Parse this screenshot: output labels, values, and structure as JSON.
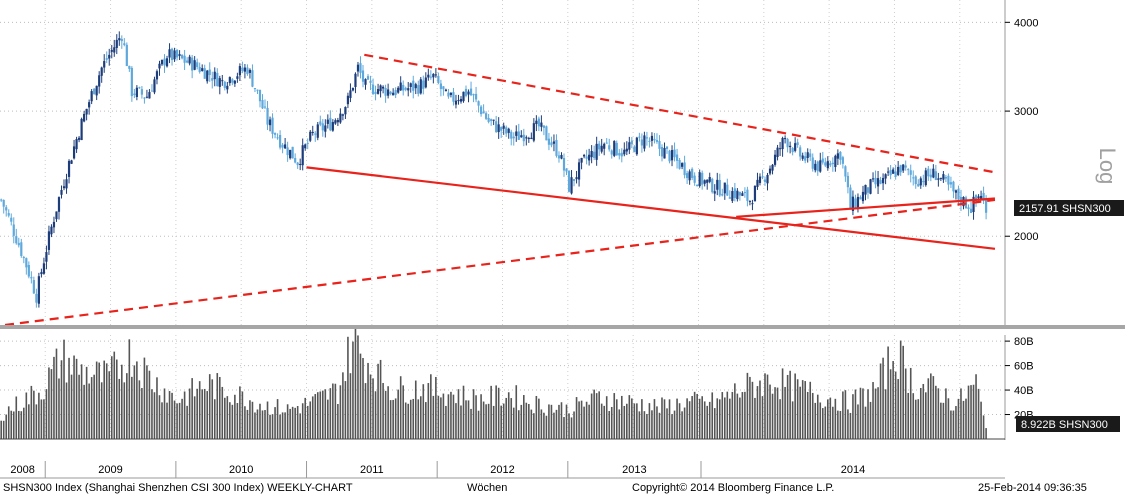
{
  "chart_data": [
    {
      "type": "candlestick",
      "title": "",
      "yscale": "log",
      "ylabel": "Log",
      "ylim": [
        1500,
        4300
      ],
      "yticks": [
        2000,
        3000,
        4000
      ],
      "ytick_labels": [
        "2000",
        "3000",
        "4000"
      ],
      "last_value_label": "2157.91 SHSN300",
      "last_value": 2157.91,
      "bull_color": "#1c3c7a",
      "bear_color": "#5ea8dc",
      "trend_color": "#e8231b",
      "series": [
        {
          "week": 0,
          "close": 2250
        },
        {
          "week": 14,
          "close": 1650
        },
        {
          "week": 28,
          "close": 2600
        },
        {
          "week": 40,
          "close": 3450
        },
        {
          "week": 48,
          "close": 3850
        },
        {
          "week": 52,
          "close": 3200
        },
        {
          "week": 58,
          "close": 3150
        },
        {
          "week": 66,
          "close": 3600
        },
        {
          "week": 76,
          "close": 3500
        },
        {
          "week": 88,
          "close": 3300
        },
        {
          "week": 98,
          "close": 3450
        },
        {
          "week": 106,
          "close": 2900
        },
        {
          "week": 112,
          "close": 2700
        },
        {
          "week": 118,
          "close": 2550
        },
        {
          "week": 124,
          "close": 2780
        },
        {
          "week": 132,
          "close": 2900
        },
        {
          "week": 138,
          "close": 3100
        },
        {
          "week": 142,
          "close": 3450
        },
        {
          "week": 145,
          "close": 3250
        },
        {
          "week": 156,
          "close": 3200
        },
        {
          "week": 166,
          "close": 3250
        },
        {
          "week": 172,
          "close": 3350
        },
        {
          "week": 178,
          "close": 3100
        },
        {
          "week": 186,
          "close": 3200
        },
        {
          "week": 194,
          "close": 2900
        },
        {
          "week": 204,
          "close": 2750
        },
        {
          "week": 214,
          "close": 2850
        },
        {
          "week": 222,
          "close": 2620
        },
        {
          "week": 226,
          "close": 2350
        },
        {
          "week": 232,
          "close": 2550
        },
        {
          "week": 240,
          "close": 2700
        },
        {
          "week": 248,
          "close": 2620
        },
        {
          "week": 256,
          "close": 2750
        },
        {
          "week": 266,
          "close": 2600
        },
        {
          "week": 276,
          "close": 2420
        },
        {
          "week": 284,
          "close": 2350
        },
        {
          "week": 292,
          "close": 2300
        },
        {
          "week": 298,
          "close": 2250
        },
        {
          "week": 306,
          "close": 2500
        },
        {
          "week": 312,
          "close": 2750
        },
        {
          "week": 318,
          "close": 2600
        },
        {
          "week": 326,
          "close": 2500
        },
        {
          "week": 334,
          "close": 2620
        },
        {
          "week": 338,
          "close": 2200
        },
        {
          "week": 346,
          "close": 2350
        },
        {
          "week": 352,
          "close": 2400
        },
        {
          "week": 358,
          "close": 2500
        },
        {
          "week": 364,
          "close": 2400
        },
        {
          "week": 372,
          "close": 2450
        },
        {
          "week": 380,
          "close": 2280
        },
        {
          "week": 386,
          "close": 2200
        },
        {
          "week": 390,
          "close": 2300
        },
        {
          "week": 392,
          "close": 2158
        }
      ],
      "trendlines": [
        {
          "style": "dashed",
          "from": {
            "week": 2,
            "value": 1500
          },
          "to": {
            "week": 396,
            "value": 2250
          }
        },
        {
          "style": "dashed",
          "from": {
            "week": 145,
            "value": 3600
          },
          "to": {
            "week": 396,
            "value": 2460
          }
        },
        {
          "style": "solid",
          "from": {
            "week": 122,
            "value": 2500
          },
          "to": {
            "week": 396,
            "value": 1920
          }
        },
        {
          "style": "solid",
          "from": {
            "week": 293,
            "value": 2130
          },
          "to": {
            "week": 396,
            "value": 2260
          }
        }
      ]
    },
    {
      "type": "bar",
      "title": "",
      "ylim": [
        0,
        85
      ],
      "yticks": [
        20,
        40,
        60,
        80
      ],
      "ytick_labels": [
        "20B",
        "40B",
        "60B",
        "80B"
      ],
      "last_value_label": "8.922B SHSN300",
      "last_value": 8.922,
      "series": [
        {
          "week": 0,
          "value": 20
        },
        {
          "week": 16,
          "value": 40
        },
        {
          "week": 24,
          "value": 66
        },
        {
          "week": 32,
          "value": 55
        },
        {
          "week": 42,
          "value": 50
        },
        {
          "week": 52,
          "value": 70
        },
        {
          "week": 60,
          "value": 48
        },
        {
          "week": 70,
          "value": 32
        },
        {
          "week": 82,
          "value": 45
        },
        {
          "week": 92,
          "value": 38
        },
        {
          "week": 104,
          "value": 28
        },
        {
          "week": 114,
          "value": 24
        },
        {
          "week": 124,
          "value": 30
        },
        {
          "week": 134,
          "value": 40
        },
        {
          "week": 140,
          "value": 80
        },
        {
          "week": 146,
          "value": 62
        },
        {
          "week": 156,
          "value": 40
        },
        {
          "week": 168,
          "value": 42
        },
        {
          "week": 178,
          "value": 38
        },
        {
          "week": 190,
          "value": 32
        },
        {
          "week": 202,
          "value": 36
        },
        {
          "week": 214,
          "value": 28
        },
        {
          "week": 226,
          "value": 24
        },
        {
          "week": 238,
          "value": 34
        },
        {
          "week": 250,
          "value": 30
        },
        {
          "week": 262,
          "value": 26
        },
        {
          "week": 274,
          "value": 30
        },
        {
          "week": 284,
          "value": 30
        },
        {
          "week": 296,
          "value": 42
        },
        {
          "week": 306,
          "value": 48
        },
        {
          "week": 316,
          "value": 42
        },
        {
          "week": 328,
          "value": 34
        },
        {
          "week": 338,
          "value": 30
        },
        {
          "week": 348,
          "value": 40
        },
        {
          "week": 356,
          "value": 72
        },
        {
          "week": 364,
          "value": 42
        },
        {
          "week": 372,
          "value": 42
        },
        {
          "week": 380,
          "value": 28
        },
        {
          "week": 388,
          "value": 45
        },
        {
          "week": 392,
          "value": 9
        }
      ]
    }
  ],
  "x_axis": {
    "year_labels": [
      "2008",
      "2009",
      "2010",
      "2011",
      "2012",
      "2013",
      "2014"
    ],
    "year_start_weeks": [
      0,
      18,
      70,
      122,
      174,
      226,
      279
    ],
    "visible_weeks": 400
  },
  "footer": {
    "description": "SHSN300 Index (Shanghai Shenzhen CSI 300 Index) WEEKLY-CHART",
    "period": "Wöchen",
    "copyright": "Copyright© 2014 Bloomberg Finance L.P.",
    "timestamp": "25-Feb-2014 09:36:35"
  }
}
